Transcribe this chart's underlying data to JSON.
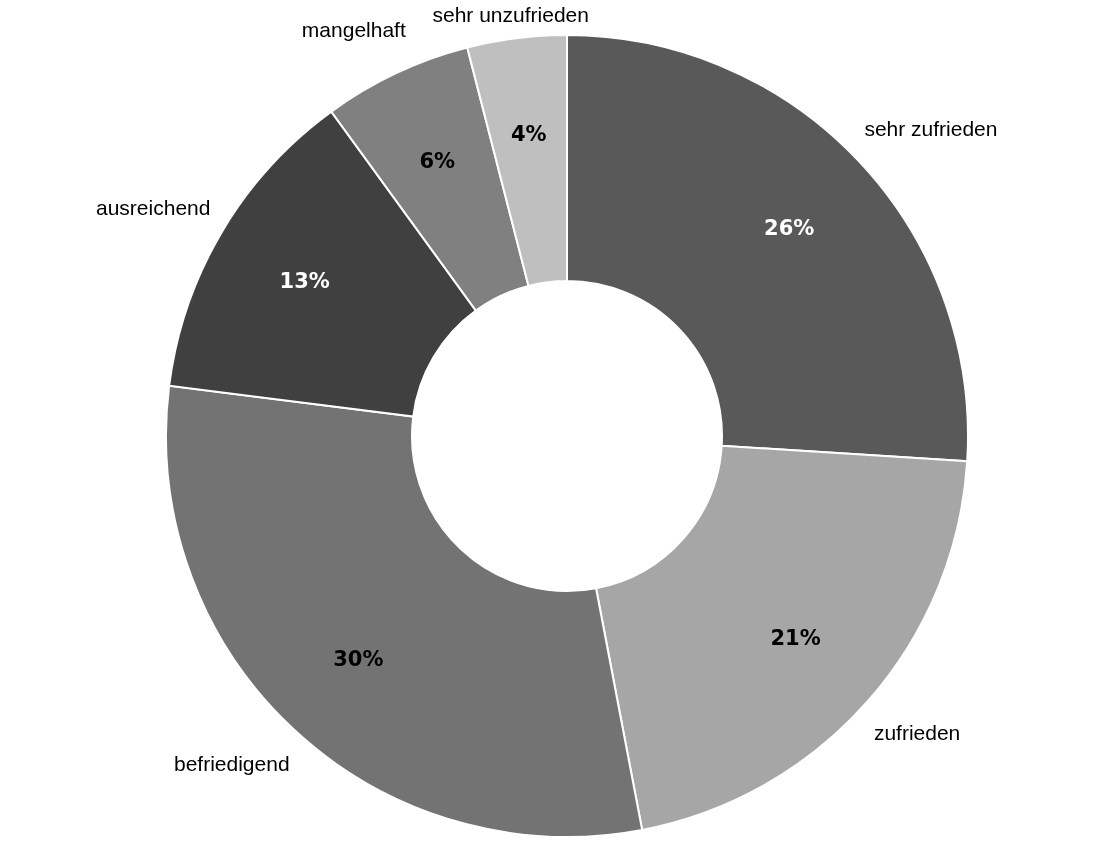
{
  "chart_data": {
    "type": "donut",
    "categories": [
      "sehr zufrieden",
      "zufrieden",
      "befriedigend",
      "ausreichend",
      "mangelhaft",
      "sehr unzufrieden"
    ],
    "values": [
      26,
      21,
      30,
      13,
      6,
      4
    ],
    "value_labels": [
      "26%",
      "21%",
      "30%",
      "13%",
      "6%",
      "4%"
    ],
    "colors": [
      "#595959",
      "#a6a6a6",
      "#737373",
      "#404040",
      "#808080",
      "#bfbfbf"
    ],
    "legend": false
  }
}
